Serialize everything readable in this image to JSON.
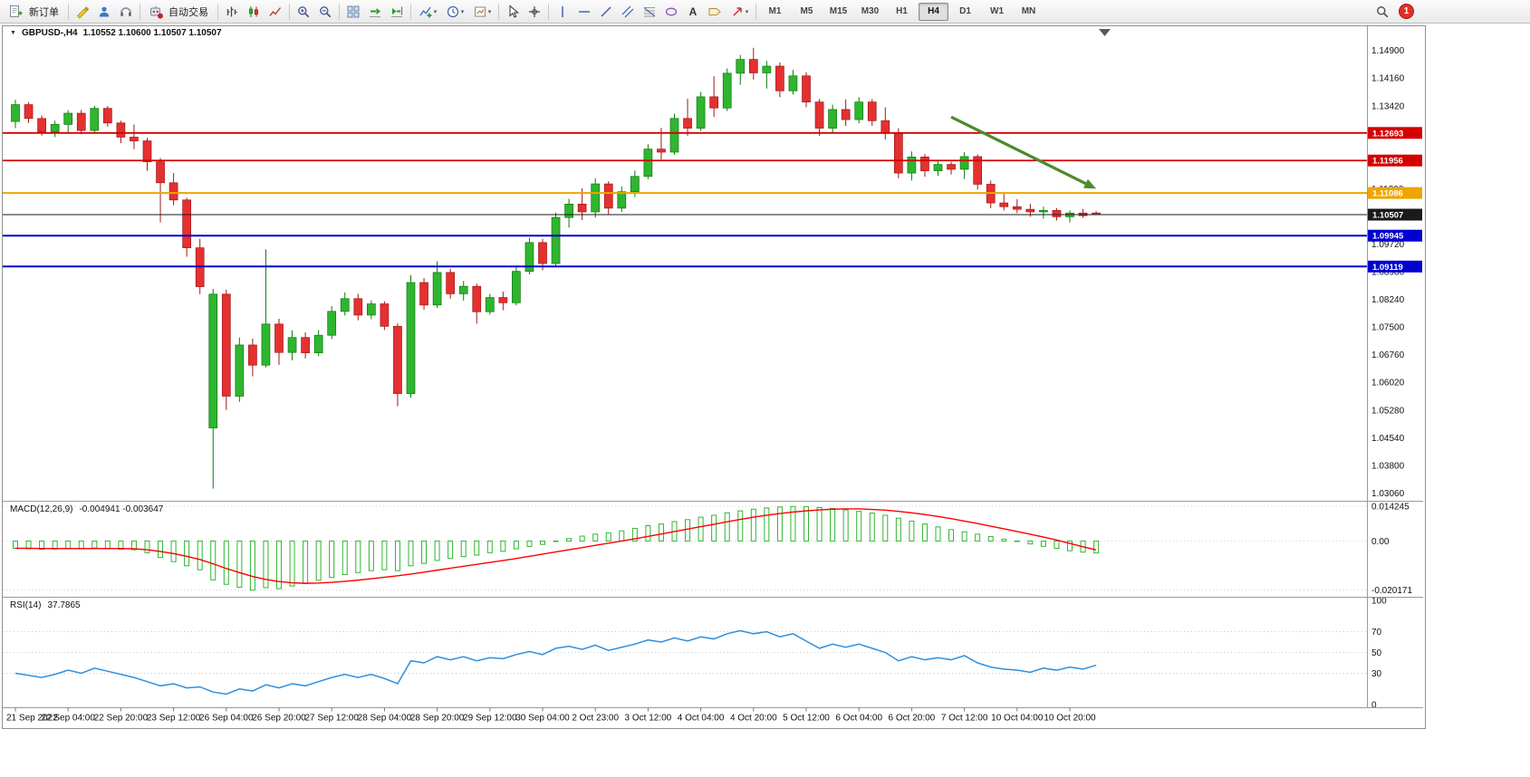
{
  "toolbar": {
    "new_order_label": "新订单",
    "auto_trading_label": "自动交易",
    "timeframes": [
      "M1",
      "M5",
      "M15",
      "M30",
      "H1",
      "H4",
      "D1",
      "W1",
      "MN"
    ],
    "active_timeframe": "H4",
    "notification_count": "1"
  },
  "chart_data": {
    "type": "candlestick",
    "title": "GBPUSD-,H4",
    "ohlc_readout": "1.10552 1.10600 1.10507 1.10507",
    "price_axis": {
      "min": 1.029,
      "max": 1.1545,
      "labels": [
        "1.14900",
        "1.14160",
        "1.13420",
        "1.12680",
        "1.11940",
        "1.11200",
        "1.10460",
        "1.09720",
        "1.08980",
        "1.08240",
        "1.07500",
        "1.06760",
        "1.06020",
        "1.05280",
        "1.04540",
        "1.03800",
        "1.03060"
      ]
    },
    "time_axis": {
      "step": 4,
      "labels": [
        "21 Sep 2022",
        "22 Sep 04:00",
        "22 Sep 20:00",
        "23 Sep 12:00",
        "26 Sep 04:00",
        "26 Sep 20:00",
        "27 Sep 12:00",
        "28 Sep 04:00",
        "28 Sep 20:00",
        "29 Sep 12:00",
        "30 Sep 04:00",
        "2 Oct 23:00",
        "3 Oct 12:00",
        "4 Oct 04:00",
        "4 Oct 20:00",
        "5 Oct 12:00",
        "6 Oct 04:00",
        "6 Oct 20:00",
        "7 Oct 12:00",
        "10 Oct 04:00",
        "10 Oct 20:00"
      ]
    },
    "colors": {
      "background": "#FFFFFF",
      "up": "#2FB52F",
      "up_dark": "#0E7A0E",
      "down": "#E53030",
      "down_dark": "#A01818"
    },
    "candles": [
      [
        1.13,
        1.1358,
        1.1282,
        1.1345
      ],
      [
        1.1345,
        1.1352,
        1.1296,
        1.1308
      ],
      [
        1.1308,
        1.1316,
        1.1262,
        1.1272
      ],
      [
        1.1272,
        1.1302,
        1.1258,
        1.1292
      ],
      [
        1.1292,
        1.133,
        1.1268,
        1.1322
      ],
      [
        1.1322,
        1.1331,
        1.1266,
        1.1276
      ],
      [
        1.1276,
        1.1342,
        1.127,
        1.1335
      ],
      [
        1.1335,
        1.1341,
        1.1286,
        1.1296
      ],
      [
        1.1296,
        1.1302,
        1.1242,
        1.1258
      ],
      [
        1.1258,
        1.1292,
        1.1226,
        1.1248
      ],
      [
        1.1248,
        1.1256,
        1.1168,
        1.1192
      ],
      [
        1.1192,
        1.1202,
        1.103,
        1.1136
      ],
      [
        1.1136,
        1.1162,
        1.1076,
        1.109
      ],
      [
        1.109,
        1.1096,
        1.0938,
        1.0962
      ],
      [
        1.0962,
        1.0986,
        1.0838,
        1.0858
      ],
      [
        1.048,
        1.0852,
        1.0318,
        1.0838
      ],
      [
        1.0838,
        1.085,
        1.0528,
        1.0565
      ],
      [
        1.0565,
        1.0722,
        1.055,
        1.0702
      ],
      [
        1.0702,
        1.0719,
        1.0618,
        1.0648
      ],
      [
        1.0648,
        1.0958,
        1.0642,
        1.0758
      ],
      [
        1.0758,
        1.0772,
        1.0649,
        1.0682
      ],
      [
        1.0682,
        1.0741,
        1.0661,
        1.0722
      ],
      [
        1.0722,
        1.0736,
        1.0666,
        1.0681
      ],
      [
        1.0681,
        1.0742,
        1.0672,
        1.0728
      ],
      [
        1.0728,
        1.0806,
        1.0718,
        1.0792
      ],
      [
        1.0792,
        1.0843,
        1.0781,
        1.0826
      ],
      [
        1.0826,
        1.0839,
        1.0768,
        1.0782
      ],
      [
        1.0782,
        1.0821,
        1.0771,
        1.0812
      ],
      [
        1.0812,
        1.0819,
        1.0742,
        1.0752
      ],
      [
        1.0752,
        1.076,
        1.0538,
        1.0572
      ],
      [
        1.0572,
        1.0889,
        1.0561,
        1.0869
      ],
      [
        1.0869,
        1.0881,
        1.0796,
        1.0809
      ],
      [
        1.0809,
        1.0926,
        1.0801,
        1.0896
      ],
      [
        1.0896,
        1.0906,
        1.0826,
        1.0839
      ],
      [
        1.0839,
        1.0873,
        1.0821,
        1.0859
      ],
      [
        1.0859,
        1.0866,
        1.0759,
        1.0791
      ],
      [
        1.0791,
        1.0839,
        1.0783,
        1.0829
      ],
      [
        1.0829,
        1.0845,
        1.0795,
        1.0815
      ],
      [
        1.0815,
        1.0911,
        1.0808,
        1.0899
      ],
      [
        1.0899,
        1.0989,
        1.0891,
        1.0976
      ],
      [
        1.0976,
        1.0986,
        1.0902,
        1.092
      ],
      [
        1.092,
        1.1056,
        1.0912,
        1.1043
      ],
      [
        1.1043,
        1.1093,
        1.1016,
        1.1079
      ],
      [
        1.1079,
        1.1121,
        1.1036,
        1.1058
      ],
      [
        1.1058,
        1.1148,
        1.1043,
        1.1133
      ],
      [
        1.1133,
        1.114,
        1.1052,
        1.1068
      ],
      [
        1.1068,
        1.1126,
        1.1058,
        1.1112
      ],
      [
        1.1112,
        1.1169,
        1.1098,
        1.1153
      ],
      [
        1.1153,
        1.1239,
        1.1146,
        1.1226
      ],
      [
        1.1226,
        1.1283,
        1.1198,
        1.1218
      ],
      [
        1.1218,
        1.1321,
        1.1211,
        1.1308
      ],
      [
        1.1308,
        1.1361,
        1.1262,
        1.1282
      ],
      [
        1.1282,
        1.1379,
        1.1275,
        1.1366
      ],
      [
        1.1366,
        1.1421,
        1.1312,
        1.1336
      ],
      [
        1.1336,
        1.1442,
        1.1328,
        1.1429
      ],
      [
        1.1429,
        1.1478,
        1.1398,
        1.1466
      ],
      [
        1.1466,
        1.1497,
        1.1412,
        1.143
      ],
      [
        1.143,
        1.1462,
        1.1388,
        1.1448
      ],
      [
        1.1448,
        1.1458,
        1.1365,
        1.1382
      ],
      [
        1.1382,
        1.1438,
        1.1372,
        1.1422
      ],
      [
        1.1422,
        1.1431,
        1.1338,
        1.1352
      ],
      [
        1.1352,
        1.136,
        1.1262,
        1.1282
      ],
      [
        1.1282,
        1.1345,
        1.127,
        1.1332
      ],
      [
        1.1332,
        1.1359,
        1.1288,
        1.1305
      ],
      [
        1.1305,
        1.1365,
        1.1295,
        1.1352
      ],
      [
        1.1352,
        1.136,
        1.1288,
        1.1302
      ],
      [
        1.1302,
        1.1338,
        1.1252,
        1.1268
      ],
      [
        1.1268,
        1.1282,
        1.1148,
        1.1162
      ],
      [
        1.1162,
        1.122,
        1.1142,
        1.1205
      ],
      [
        1.1205,
        1.1213,
        1.1152,
        1.1168
      ],
      [
        1.1168,
        1.1196,
        1.1155,
        1.1185
      ],
      [
        1.1185,
        1.1192,
        1.1158,
        1.1172
      ],
      [
        1.1172,
        1.1218,
        1.1146,
        1.1206
      ],
      [
        1.1206,
        1.1212,
        1.1118,
        1.1132
      ],
      [
        1.1132,
        1.1142,
        1.1068,
        1.1082
      ],
      [
        1.1082,
        1.1108,
        1.1062,
        1.1072
      ],
      [
        1.1072,
        1.1092,
        1.1055,
        1.1065
      ],
      [
        1.1065,
        1.108,
        1.1045,
        1.1058
      ],
      [
        1.1058,
        1.1072,
        1.104,
        1.1062
      ],
      [
        1.1062,
        1.1068,
        1.1035,
        1.1045
      ],
      [
        1.1045,
        1.1062,
        1.103,
        1.1055
      ],
      [
        1.1055,
        1.1066,
        1.1042,
        1.1048
      ],
      [
        1.10552,
        1.106,
        1.10507,
        1.10507
      ]
    ],
    "hlines": [
      {
        "price": 1.12693,
        "label": "1.12693",
        "color": "#D40000",
        "width": 1.8
      },
      {
        "price": 1.11956,
        "label": "1.11956",
        "color": "#D40000",
        "width": 1.8
      },
      {
        "price": 1.11086,
        "label": "1.11086",
        "color": "#EFA500",
        "width": 2
      },
      {
        "price": 1.09945,
        "label": "1.09945",
        "color": "#0000D0",
        "width": 2
      },
      {
        "price": 1.09119,
        "label": "1.09119",
        "color": "#0000D0",
        "width": 2
      }
    ],
    "current_price": {
      "price": 1.10507,
      "label": "1.10507",
      "color": "#1A1A1A"
    },
    "arrow": {
      "from_index": 71,
      "from_price": 1.1312,
      "to_index": 82,
      "to_price": 1.112,
      "color": "#4A8B2C"
    },
    "macd": {
      "name": "MACD(12,26,9)",
      "values": "-0.004941 -0.003647",
      "axis_labels": [
        "0.014245",
        "0.00",
        "-0.020171"
      ],
      "axis_values": [
        0.014245,
        0,
        -0.020171
      ],
      "scale_max": 0.0158,
      "scale_min": -0.0222,
      "histogram_color": "#2FB52F",
      "signal_color": "#FF0000",
      "histogram": [
        -0.003,
        -0.0032,
        -0.0034,
        -0.0033,
        -0.0031,
        -0.0032,
        -0.0029,
        -0.0031,
        -0.0034,
        -0.0036,
        -0.0048,
        -0.0068,
        -0.0085,
        -0.0102,
        -0.0118,
        -0.016,
        -0.0178,
        -0.019,
        -0.0202,
        -0.0192,
        -0.0196,
        -0.0185,
        -0.0175,
        -0.0162,
        -0.015,
        -0.0138,
        -0.013,
        -0.0122,
        -0.0118,
        -0.0122,
        -0.0102,
        -0.0092,
        -0.008,
        -0.0072,
        -0.0064,
        -0.0058,
        -0.0048,
        -0.0042,
        -0.0032,
        -0.0022,
        -0.0014,
        -0.0002,
        0.001,
        0.002,
        0.0028,
        0.0034,
        0.0042,
        0.0052,
        0.0063,
        0.007,
        0.008,
        0.0088,
        0.0098,
        0.0106,
        0.0116,
        0.0124,
        0.0131,
        0.0136,
        0.014,
        0.0142,
        0.0141,
        0.0138,
        0.0134,
        0.0128,
        0.0122,
        0.0115,
        0.0106,
        0.0094,
        0.0082,
        0.007,
        0.0058,
        0.0047,
        0.0038,
        0.0028,
        0.0018,
        0.0008,
        -0.0002,
        -0.0012,
        -0.0022,
        -0.003,
        -0.004,
        -0.0046,
        -0.004941
      ],
      "signal": [
        -0.003,
        -0.003,
        -0.0031,
        -0.0031,
        -0.0031,
        -0.0031,
        -0.0031,
        -0.0031,
        -0.0031,
        -0.0032,
        -0.0036,
        -0.0043,
        -0.0052,
        -0.0063,
        -0.0076,
        -0.0094,
        -0.0113,
        -0.013,
        -0.0146,
        -0.0158,
        -0.0167,
        -0.0172,
        -0.0174,
        -0.0173,
        -0.017,
        -0.0166,
        -0.0161,
        -0.0155,
        -0.0149,
        -0.0143,
        -0.0136,
        -0.0128,
        -0.012,
        -0.0112,
        -0.0104,
        -0.0096,
        -0.0088,
        -0.008,
        -0.0072,
        -0.0063,
        -0.0054,
        -0.0045,
        -0.0036,
        -0.0027,
        -0.0018,
        -0.0009,
        0.0,
        0.0009,
        0.0019,
        0.0029,
        0.0039,
        0.0049,
        0.0059,
        0.0069,
        0.0079,
        0.0089,
        0.0098,
        0.0106,
        0.0113,
        0.0119,
        0.0124,
        0.0128,
        0.0131,
        0.0132,
        0.0132,
        0.013,
        0.0127,
        0.0122,
        0.0116,
        0.0109,
        0.0101,
        0.0092,
        0.0082,
        0.0072,
        0.0061,
        0.005,
        0.0039,
        0.0028,
        0.0016,
        0.0004,
        -0.001,
        -0.0024,
        -0.003647
      ]
    },
    "rsi": {
      "name": "RSI(14)",
      "value": "37.7865",
      "axis_labels": [
        "100",
        "70",
        "50",
        "30",
        "0"
      ],
      "axis_values": [
        100,
        70,
        50,
        30,
        0
      ],
      "levels": [
        70,
        50,
        30
      ],
      "color": "#2F8FDE",
      "values": [
        30,
        28,
        26,
        29,
        33,
        30,
        35,
        32,
        29,
        26,
        22,
        18,
        20,
        16,
        17,
        12,
        10,
        15,
        13,
        19,
        16,
        20,
        18,
        22,
        26,
        29,
        26,
        29,
        25,
        20,
        42,
        40,
        46,
        43,
        46,
        42,
        45,
        44,
        48,
        51,
        48,
        54,
        56,
        53,
        57,
        52,
        55,
        58,
        62,
        60,
        64,
        61,
        65,
        63,
        68,
        71,
        68,
        70,
        65,
        68,
        61,
        54,
        58,
        55,
        58,
        54,
        50,
        42,
        46,
        43,
        45,
        43,
        47,
        40,
        36,
        34,
        33,
        31,
        35,
        33,
        36,
        34,
        37.7865
      ]
    }
  }
}
